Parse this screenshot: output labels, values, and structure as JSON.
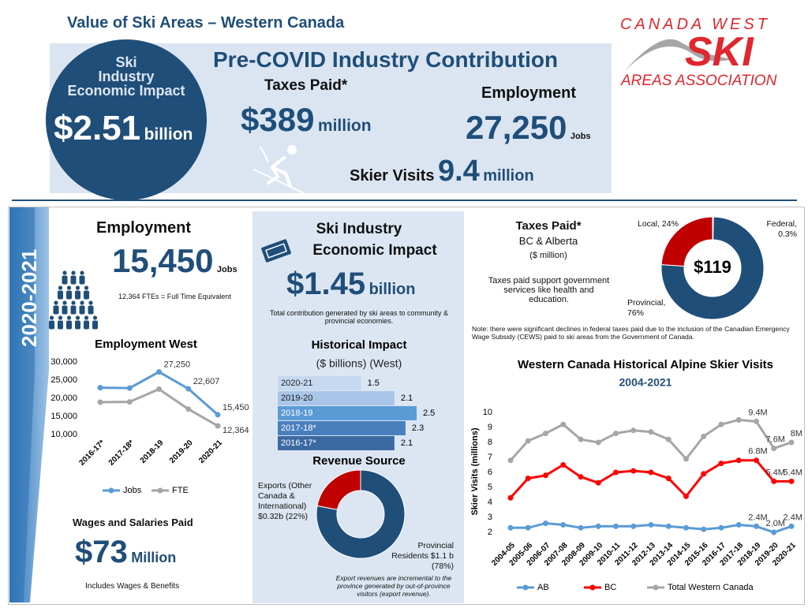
{
  "header": {
    "title": "Value of Ski Areas – Western Canada",
    "logo": {
      "top": "CANADA WEST",
      "main": "SKI",
      "bottom": "AREAS ASSOCIATION"
    }
  },
  "pre_covid": {
    "title": "Pre-COVID Industry Contribution",
    "impact": {
      "label": [
        "Ski",
        "Industry",
        "Economic Impact"
      ],
      "value": "$2.51",
      "unit": "billion"
    },
    "taxes": {
      "label": "Taxes Paid*",
      "value": "$389",
      "unit": "million"
    },
    "employment": {
      "label": "Employment",
      "value": "27,250",
      "unit": "Jobs"
    },
    "visits": {
      "label": "Skier Visits",
      "value": "9.4",
      "unit": "million"
    }
  },
  "period": "2020-2021",
  "employment": {
    "label": "Employment",
    "value": "15,450",
    "unit": "Jobs",
    "note": "12,364 FTEs = Full Time Equivalent"
  },
  "wages": {
    "label": "Wages and Salaries Paid",
    "value": "$73",
    "unit": "Million",
    "note": "Includes Wages & Benefits"
  },
  "impact": {
    "label_1": "Ski Industry",
    "label_2": "Economic Impact",
    "value": "$1.45",
    "unit": "billion",
    "note": "Total contribution generated by ski areas to community & provincial economies."
  },
  "taxes": {
    "label": "Taxes Paid*",
    "region": "BC & Alberta",
    "unit": "($ million)",
    "note": "Taxes paid support government services like health and education.",
    "footnote": "Note: there were significant declines in federal taxes paid due to the inclusion of the Canadian Emergency Wage Subsidy (CEWS) paid to ski areas from the Government of Canada."
  },
  "chart_data": [
    {
      "type": "line",
      "title": "Employment West",
      "categories": [
        "2016-17*",
        "2017-18*",
        "2018-19",
        "2019-20",
        "2020-21"
      ],
      "series": [
        {
          "name": "Jobs",
          "color": "#5b9bd5",
          "values": [
            22900,
            22800,
            27250,
            22607,
            15450
          ],
          "value_labels": [
            null,
            null,
            "27,250",
            "22,607",
            "15,450"
          ]
        },
        {
          "name": "FTE",
          "color": "#a5a5a5",
          "values": [
            18900,
            19000,
            22500,
            17000,
            12364
          ],
          "value_labels": [
            null,
            null,
            null,
            null,
            "12,364"
          ]
        }
      ],
      "ylim": [
        10000,
        30000
      ],
      "yticks": [
        {
          "value": 10000,
          "label": "10,000"
        },
        {
          "value": 15000,
          "label": "15,000"
        },
        {
          "value": 20000,
          "label": "20,000"
        },
        {
          "value": 25000,
          "label": "25,000"
        },
        {
          "value": 30000,
          "label": "30,000"
        }
      ],
      "legend": "bottom"
    },
    {
      "type": "bar",
      "orientation": "horizontal",
      "title": "Historical Impact",
      "subtitle": "($ billions) (West)",
      "categories": [
        "2020-21",
        "2019-20",
        "2018-19",
        "2017-18*",
        "2016-17*"
      ],
      "values": [
        1.5,
        2.1,
        2.5,
        2.3,
        2.1
      ],
      "colors": [
        "#c6d9f0",
        "#a9c6e8",
        "#5b9bd5",
        "#4a7fbd",
        "#3b6aa3"
      ],
      "xlim": [
        0,
        2.5
      ]
    },
    {
      "type": "pie",
      "donut": true,
      "title": "Revenue Source",
      "values": [
        22,
        78
      ],
      "value_labels": [
        "Exports (Other Canada & International) $0.32b (22%)",
        "Provincial Residents $1.1 b (78%)"
      ],
      "colors": [
        "#c00000",
        "#1f4e79"
      ],
      "note": "Export revenues are incremental to the province generated by out-of-province visitors (export revenue)."
    },
    {
      "type": "pie",
      "donut": true,
      "center_label": "$119",
      "values": [
        24,
        0.3,
        76
      ],
      "value_labels": [
        "Local, 24%",
        "Federal, 0.3%",
        "Provincial, 76%"
      ],
      "colors": [
        "#c00000",
        "#a6a6a6",
        "#1f4e79"
      ]
    },
    {
      "type": "line",
      "title": "Western Canada Historical Alpine Skier Visits",
      "subtitle": "2004-2021",
      "y_label": "Skier Visits (millions)",
      "categories": [
        "2004-05",
        "2005-06",
        "2006-07",
        "2007-08",
        "2008-09",
        "2009-10",
        "2010-11",
        "2011-12",
        "2012-13",
        "2013-14",
        "2014-15",
        "2015-16",
        "2016-17",
        "2017-18",
        "2018-19",
        "2019-20",
        "2020-21"
      ],
      "series": [
        {
          "name": "AB",
          "color": "#5b9bd5",
          "values": [
            2.3,
            2.3,
            2.6,
            2.5,
            2.3,
            2.4,
            2.4,
            2.4,
            2.5,
            2.4,
            2.3,
            2.2,
            2.3,
            2.5,
            2.4,
            2.0,
            2.4
          ],
          "value_labels": [
            null,
            null,
            null,
            null,
            null,
            null,
            null,
            null,
            null,
            null,
            null,
            null,
            null,
            null,
            "2.4M",
            "2.0M",
            "2.4M"
          ]
        },
        {
          "name": "BC",
          "color": "#ff0000",
          "values": [
            4.3,
            5.6,
            5.8,
            6.5,
            5.7,
            5.3,
            6.0,
            6.1,
            6.0,
            5.6,
            4.4,
            5.9,
            6.6,
            6.8,
            6.8,
            5.4,
            5.4
          ],
          "value_labels": [
            null,
            null,
            null,
            null,
            null,
            null,
            null,
            null,
            null,
            null,
            null,
            null,
            null,
            null,
            "6.8M",
            "5.4M",
            "5.4M"
          ]
        },
        {
          "name": "Total Western Canada",
          "color": "#a6a6a6",
          "values": [
            6.8,
            8.1,
            8.6,
            9.2,
            8.2,
            8.0,
            8.6,
            8.8,
            8.7,
            8.2,
            6.9,
            8.4,
            9.2,
            9.5,
            9.4,
            7.6,
            8.0
          ],
          "value_labels": [
            null,
            null,
            null,
            null,
            null,
            null,
            null,
            null,
            null,
            null,
            null,
            null,
            null,
            null,
            "9.4M",
            "7.6M",
            "8M"
          ]
        }
      ],
      "ylim": [
        1.5,
        10.5
      ],
      "yticks": [
        2,
        3,
        4,
        5,
        6,
        7,
        8,
        9,
        10
      ],
      "legend": "bottom"
    }
  ]
}
